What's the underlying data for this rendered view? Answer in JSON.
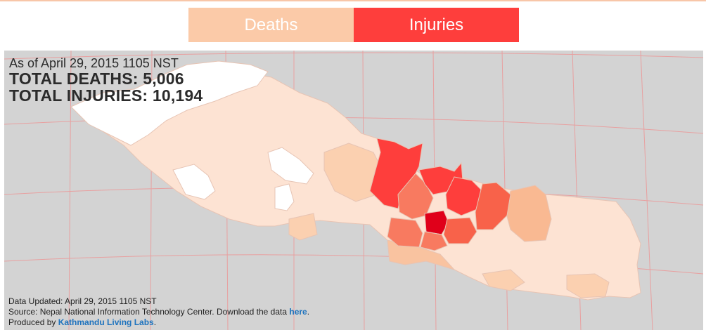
{
  "tabs": [
    {
      "label": "Deaths",
      "color": "#fbcaa8",
      "active": false
    },
    {
      "label": "Injuries",
      "color": "#fe3e3c",
      "active": true
    }
  ],
  "info": {
    "as_of": "As of April 29, 2015 1105 NST",
    "total_deaths": "TOTAL DEATHS: 5,006",
    "total_injuries": "TOTAL INJURIES: 10,194"
  },
  "footer": {
    "updated": "Data Updated: April 29, 2015 1105 NST",
    "source_prefix": "Source: Nepal National Information Technology Center. Download the data ",
    "source_link": "here",
    "source_suffix": ".",
    "produced_prefix": "Produced by ",
    "produced_link": "Kathmandu Living Labs",
    "produced_suffix": "."
  },
  "colors": {
    "background": "#d3d3d3",
    "grid": "#e8a0a0",
    "no_data": "#ffffff",
    "low": "#fde3d3",
    "medium_low": "#fbd0b0",
    "medium": "#f9b992",
    "medium_high": "#f87a60",
    "high": "#fe3e3c",
    "highest": "#e0001a",
    "border": "#e7c4b4",
    "link": "#1e73be"
  }
}
